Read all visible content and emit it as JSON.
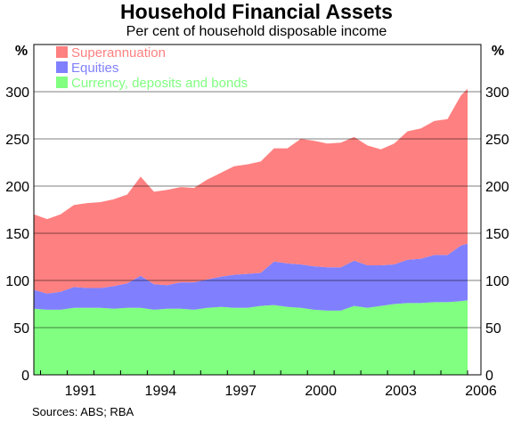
{
  "chart_data": {
    "type": "area",
    "title": "Household Financial Assets",
    "subtitle": "Per cent of household disposable income",
    "y_unit_left": "%",
    "y_unit_right": "%",
    "ylim": [
      0,
      350
    ],
    "yticks": [
      0,
      50,
      100,
      150,
      200,
      250,
      300
    ],
    "xlim": [
      1989.75,
      2006.5
    ],
    "xtick_labels": [
      "1991",
      "1994",
      "1997",
      "2000",
      "2003",
      "2006"
    ],
    "stacked": true,
    "legend_position": "top-left",
    "source": "Sources: ABS; RBA",
    "x": [
      1989.75,
      1990.25,
      1990.75,
      1991.25,
      1991.75,
      1992.25,
      1992.75,
      1993.25,
      1993.75,
      1994.25,
      1994.75,
      1995.25,
      1995.75,
      1996.25,
      1996.75,
      1997.25,
      1997.75,
      1998.25,
      1998.75,
      1999.25,
      1999.75,
      2000.25,
      2000.75,
      2001.25,
      2001.75,
      2002.25,
      2002.75,
      2003.25,
      2003.75,
      2004.25,
      2004.75,
      2005.25,
      2005.75,
      2006.0
    ],
    "series": [
      {
        "name": "Currency, deposits and bonds",
        "color": "#80ff80",
        "values": [
          70,
          69,
          69,
          71,
          71,
          71,
          70,
          71,
          71,
          69,
          70,
          70,
          69,
          71,
          72,
          71,
          71,
          73,
          74,
          72,
          71,
          69,
          68,
          68,
          73,
          71,
          73,
          75,
          76,
          76,
          77,
          77,
          78,
          79
        ]
      },
      {
        "name": "Equities",
        "color": "#8080ff",
        "values": [
          20,
          17,
          19,
          22,
          21,
          21,
          24,
          26,
          34,
          27,
          25,
          28,
          29,
          30,
          32,
          35,
          36,
          35,
          46,
          46,
          46,
          46,
          46,
          46,
          48,
          45,
          43,
          42,
          46,
          47,
          50,
          50,
          59,
          60
        ]
      },
      {
        "name": "Superannuation",
        "color": "#ff8080",
        "values": [
          80,
          79,
          82,
          87,
          90,
          91,
          92,
          94,
          105,
          98,
          101,
          101,
          100,
          106,
          110,
          115,
          116,
          118,
          120,
          122,
          133,
          133,
          131,
          132,
          131,
          127,
          123,
          128,
          136,
          138,
          142,
          144,
          159,
          164
        ]
      }
    ]
  }
}
